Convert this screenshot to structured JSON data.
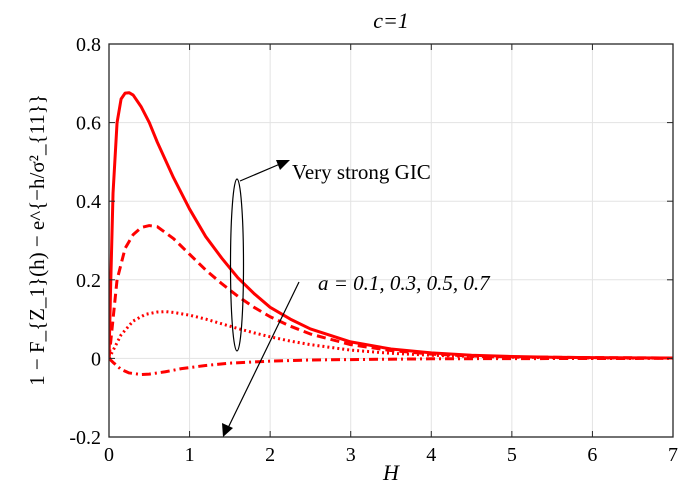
{
  "chart_data": {
    "type": "line",
    "title": "c=1",
    "xlabel": "H",
    "ylabel": "1 − F_{Z_1}(h) − e^{−h/σ²_{11}}",
    "xlim": [
      0,
      7
    ],
    "ylim": [
      -0.2,
      0.8
    ],
    "x_ticks": [
      0,
      1,
      2,
      3,
      4,
      5,
      6,
      7
    ],
    "y_ticks": [
      -0.2,
      0,
      0.2,
      0.4,
      0.6,
      0.8
    ],
    "y_tick_labels": [
      "-0.2",
      "0",
      "0.2",
      "0.4",
      "0.6",
      "0.8"
    ],
    "grid": true,
    "line_color": "#ff0000",
    "series": [
      {
        "style": "solid",
        "points": [
          [
            0,
            0
          ],
          [
            0.02,
            0.18
          ],
          [
            0.05,
            0.42
          ],
          [
            0.1,
            0.6
          ],
          [
            0.15,
            0.66
          ],
          [
            0.2,
            0.675
          ],
          [
            0.25,
            0.676
          ],
          [
            0.3,
            0.67
          ],
          [
            0.4,
            0.64
          ],
          [
            0.5,
            0.6
          ],
          [
            0.6,
            0.55
          ],
          [
            0.8,
            0.46
          ],
          [
            1.0,
            0.38
          ],
          [
            1.2,
            0.31
          ],
          [
            1.4,
            0.255
          ],
          [
            1.6,
            0.205
          ],
          [
            1.8,
            0.165
          ],
          [
            2.0,
            0.13
          ],
          [
            2.25,
            0.1
          ],
          [
            2.5,
            0.075
          ],
          [
            3.0,
            0.042
          ],
          [
            3.5,
            0.024
          ],
          [
            4.0,
            0.014
          ],
          [
            4.5,
            0.008
          ],
          [
            5.0,
            0.005
          ],
          [
            5.5,
            0.003
          ],
          [
            6.0,
            0.002
          ],
          [
            7.0,
            0.001
          ]
        ]
      },
      {
        "style": "dashed",
        "points": [
          [
            0,
            0
          ],
          [
            0.03,
            0.06
          ],
          [
            0.1,
            0.2
          ],
          [
            0.2,
            0.28
          ],
          [
            0.3,
            0.315
          ],
          [
            0.4,
            0.333
          ],
          [
            0.5,
            0.338
          ],
          [
            0.6,
            0.335
          ],
          [
            0.7,
            0.32
          ],
          [
            0.8,
            0.305
          ],
          [
            1.0,
            0.265
          ],
          [
            1.2,
            0.225
          ],
          [
            1.4,
            0.19
          ],
          [
            1.6,
            0.158
          ],
          [
            1.8,
            0.13
          ],
          [
            2.0,
            0.106
          ],
          [
            2.25,
            0.082
          ],
          [
            2.5,
            0.062
          ],
          [
            3.0,
            0.035
          ],
          [
            3.5,
            0.02
          ],
          [
            4.0,
            0.011
          ],
          [
            4.5,
            0.006
          ],
          [
            5.0,
            0.004
          ],
          [
            6.0,
            0.002
          ],
          [
            7.0,
            0.001
          ]
        ]
      },
      {
        "style": "dotted",
        "points": [
          [
            0,
            0
          ],
          [
            0.05,
            0.02
          ],
          [
            0.15,
            0.06
          ],
          [
            0.3,
            0.095
          ],
          [
            0.45,
            0.112
          ],
          [
            0.6,
            0.118
          ],
          [
            0.7,
            0.119
          ],
          [
            0.8,
            0.117
          ],
          [
            1.0,
            0.11
          ],
          [
            1.2,
            0.1
          ],
          [
            1.4,
            0.088
          ],
          [
            1.6,
            0.076
          ],
          [
            1.8,
            0.065
          ],
          [
            2.0,
            0.055
          ],
          [
            2.25,
            0.044
          ],
          [
            2.5,
            0.035
          ],
          [
            3.0,
            0.021
          ],
          [
            3.5,
            0.013
          ],
          [
            4.0,
            0.008
          ],
          [
            4.5,
            0.005
          ],
          [
            5.0,
            0.003
          ],
          [
            6.0,
            0.001
          ],
          [
            7.0,
            0.0005
          ]
        ]
      },
      {
        "style": "dashdot",
        "points": [
          [
            0,
            0
          ],
          [
            0.05,
            -0.01
          ],
          [
            0.15,
            -0.028
          ],
          [
            0.25,
            -0.037
          ],
          [
            0.4,
            -0.041
          ],
          [
            0.5,
            -0.04
          ],
          [
            0.7,
            -0.034
          ],
          [
            0.9,
            -0.026
          ],
          [
            1.2,
            -0.018
          ],
          [
            1.5,
            -0.012
          ],
          [
            2.0,
            -0.007
          ],
          [
            2.5,
            -0.004
          ],
          [
            3.0,
            -0.003
          ],
          [
            4.0,
            -0.001
          ],
          [
            5.0,
            -0.0005
          ],
          [
            7.0,
            0
          ]
        ]
      }
    ],
    "annotations": [
      {
        "text": "Very strong GIC"
      },
      {
        "text": "a = 0.1, 0.3, 0.5, 0.7"
      }
    ]
  }
}
